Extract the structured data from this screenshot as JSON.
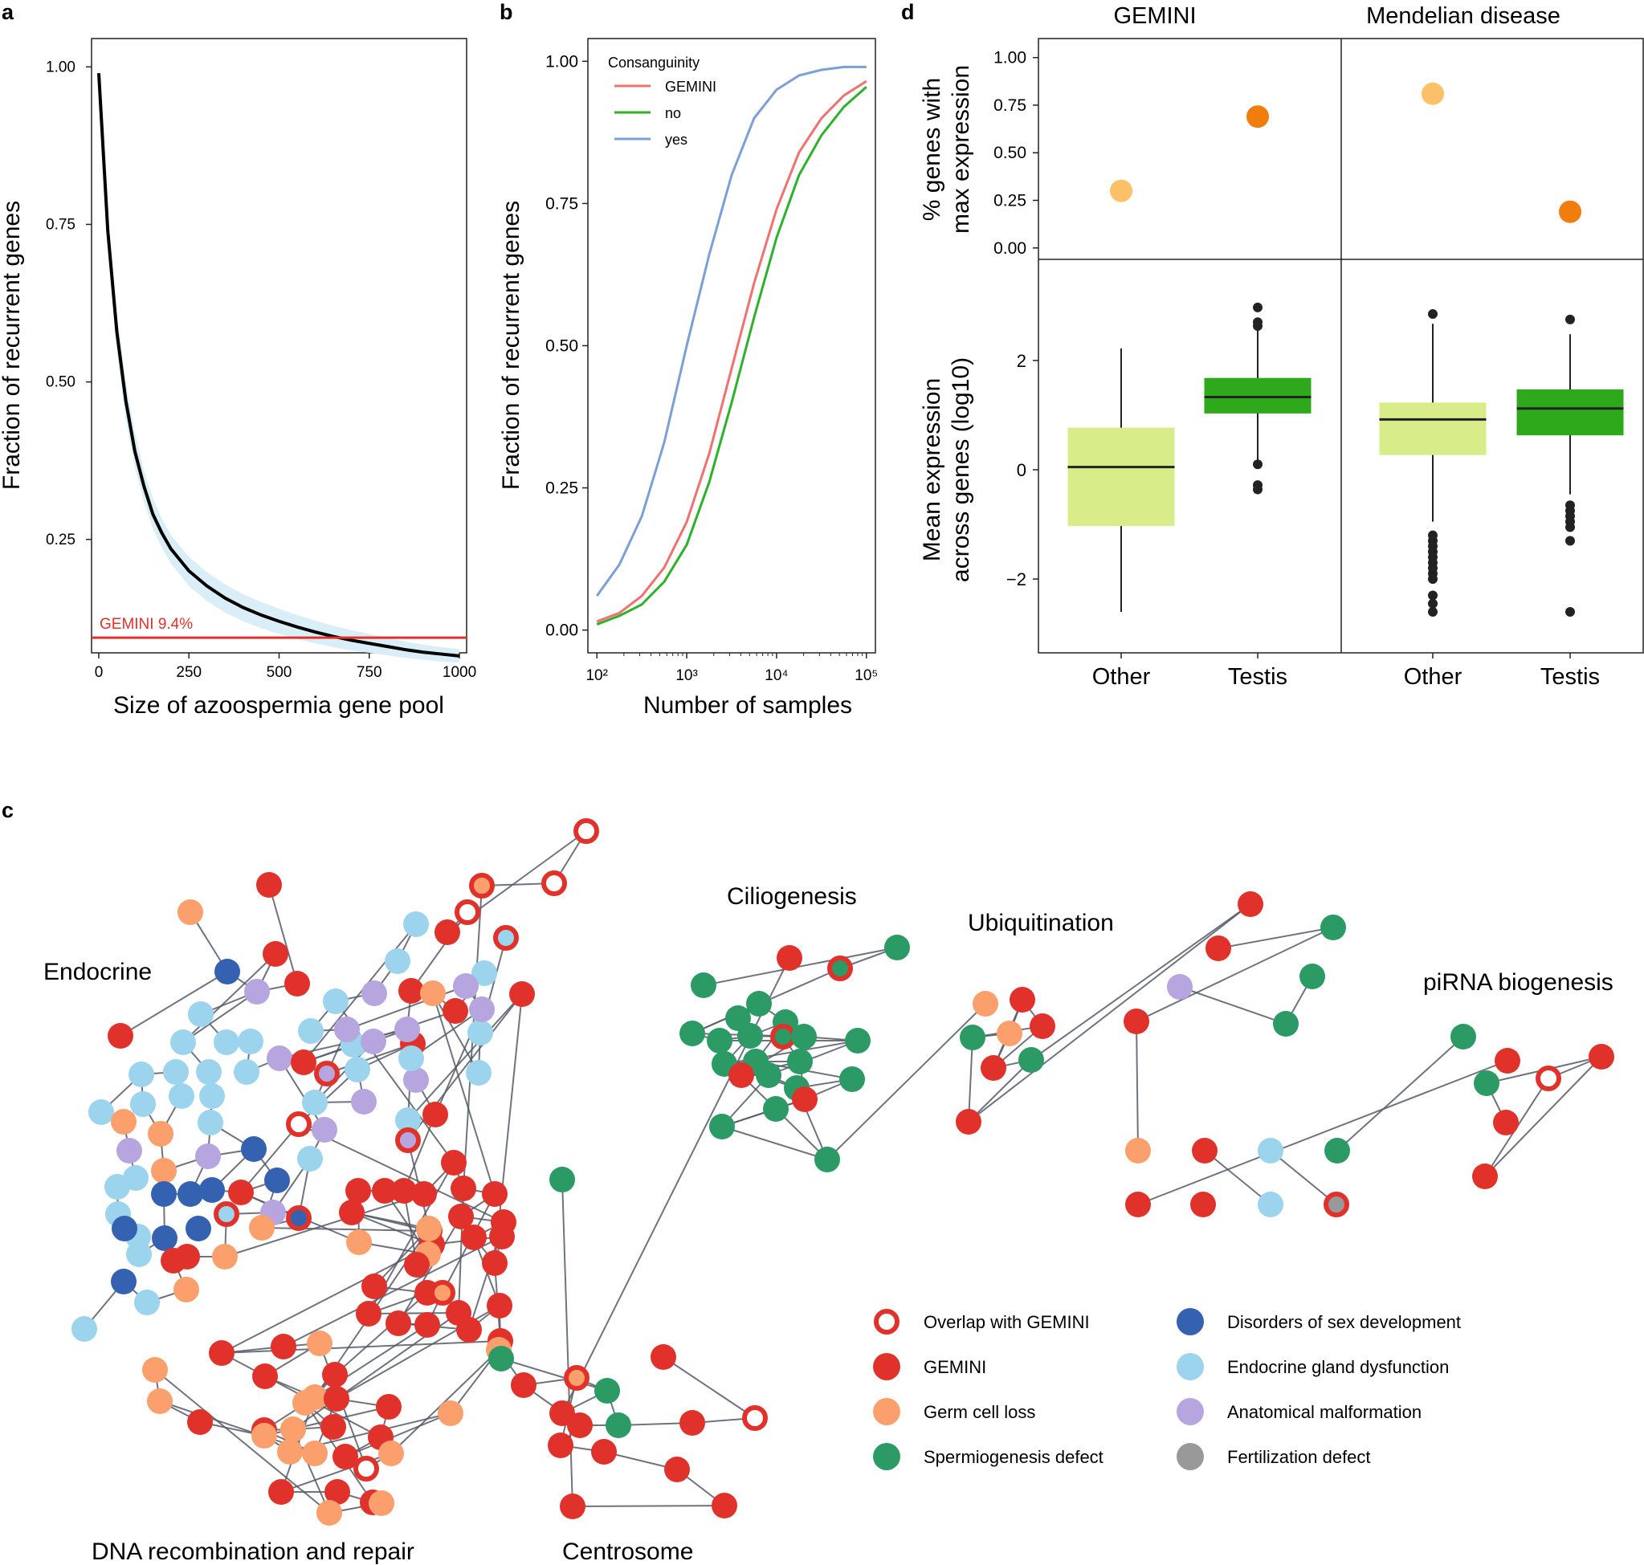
{
  "panels": {
    "a": {
      "letter": "a"
    },
    "b": {
      "letter": "b"
    },
    "c": {
      "letter": "c"
    },
    "d": {
      "letter": "d"
    }
  },
  "chart_data": [
    {
      "id": "a",
      "type": "line",
      "title": "",
      "xlabel": "Size of azoospermia gene pool",
      "ylabel": "Fraction of recurrent genes",
      "xlim": [
        -20,
        1020
      ],
      "ylim": [
        0.07,
        1.045
      ],
      "x_ticks": [
        0,
        250,
        500,
        750,
        1000
      ],
      "y_ticks": [
        0.25,
        0.5,
        0.75,
        1.0
      ],
      "y_tick_labels": [
        "0.25",
        "0.50",
        "0.75",
        "1.00"
      ],
      "series": [
        {
          "name": "fraction",
          "color": "#000000",
          "x": [
            0,
            25,
            50,
            75,
            100,
            125,
            150,
            175,
            200,
            250,
            300,
            350,
            400,
            450,
            500,
            550,
            600,
            650,
            700,
            750,
            800,
            850,
            900,
            950,
            1000
          ],
          "y": [
            0.99,
            0.74,
            0.58,
            0.47,
            0.39,
            0.335,
            0.29,
            0.26,
            0.235,
            0.2,
            0.176,
            0.157,
            0.142,
            0.13,
            0.12,
            0.111,
            0.103,
            0.096,
            0.09,
            0.085,
            0.08,
            0.075,
            0.071,
            0.068,
            0.065
          ],
          "band_low": [
            0.99,
            0.72,
            0.55,
            0.44,
            0.365,
            0.31,
            0.267,
            0.237,
            0.212,
            0.176,
            0.152,
            0.134,
            0.12,
            0.109,
            0.1,
            0.092,
            0.085,
            0.079,
            0.074,
            0.07,
            0.066,
            0.062,
            0.059,
            0.056,
            0.054
          ],
          "band_high": [
            0.99,
            0.76,
            0.61,
            0.5,
            0.42,
            0.36,
            0.315,
            0.283,
            0.257,
            0.222,
            0.198,
            0.179,
            0.163,
            0.151,
            0.14,
            0.13,
            0.121,
            0.113,
            0.106,
            0.1,
            0.094,
            0.088,
            0.083,
            0.079,
            0.076
          ],
          "band_color": "#daeef7"
        }
      ],
      "hline": {
        "y": 0.094,
        "label": "GEMINI 9.4%",
        "color": "#e0322a"
      }
    },
    {
      "id": "b",
      "type": "line",
      "title": "",
      "xlabel": "Number of samples",
      "ylabel": "Fraction of recurrent genes",
      "xscale": "log",
      "xlim_log10": [
        1.9,
        5.1
      ],
      "ylim": [
        -0.04,
        1.04
      ],
      "x_ticks_log10": [
        2,
        3,
        4,
        5
      ],
      "x_tick_labels": [
        "10²",
        "10³",
        "10⁴",
        "10⁵"
      ],
      "y_ticks": [
        0.0,
        0.25,
        0.5,
        0.75,
        1.0
      ],
      "y_tick_labels": [
        "0.00",
        "0.25",
        "0.50",
        "0.75",
        "1.00"
      ],
      "legend": {
        "title": "Consanguinity",
        "position": "top-left"
      },
      "series": [
        {
          "name": "GEMINI",
          "color": "#f0716e",
          "x_log10": [
            2.0,
            2.25,
            2.5,
            2.75,
            3.0,
            3.25,
            3.5,
            3.75,
            4.0,
            4.25,
            4.5,
            4.75,
            5.0
          ],
          "y": [
            0.015,
            0.03,
            0.06,
            0.11,
            0.19,
            0.31,
            0.46,
            0.61,
            0.74,
            0.84,
            0.9,
            0.94,
            0.965
          ]
        },
        {
          "name": "no",
          "color": "#2db12a",
          "x_log10": [
            2.0,
            2.25,
            2.5,
            2.75,
            3.0,
            3.25,
            3.5,
            3.75,
            4.0,
            4.25,
            4.5,
            4.75,
            5.0
          ],
          "y": [
            0.01,
            0.025,
            0.045,
            0.085,
            0.15,
            0.26,
            0.4,
            0.55,
            0.69,
            0.8,
            0.87,
            0.92,
            0.955
          ]
        },
        {
          "name": "yes",
          "color": "#7b9fd6",
          "x_log10": [
            2.0,
            2.25,
            2.5,
            2.75,
            3.0,
            3.25,
            3.5,
            3.75,
            4.0,
            4.25,
            4.5,
            4.75,
            5.0
          ],
          "y": [
            0.06,
            0.115,
            0.2,
            0.33,
            0.5,
            0.66,
            0.8,
            0.9,
            0.95,
            0.975,
            0.985,
            0.99,
            0.99
          ]
        }
      ]
    },
    {
      "id": "d_top",
      "type": "scatter",
      "ylabel": "% genes with max expression",
      "ylabel_lines": [
        "% genes with",
        "max expression"
      ],
      "facets": [
        "GEMINI",
        "Mendelian disease"
      ],
      "categories": [
        "Other",
        "Testis"
      ],
      "ylim": [
        -0.06,
        1.1
      ],
      "y_ticks": [
        0.0,
        0.25,
        0.5,
        0.75,
        1.0
      ],
      "y_tick_labels": [
        "0.00",
        "0.25",
        "0.50",
        "0.75",
        "1.00"
      ],
      "points": [
        {
          "facet": "GEMINI",
          "category": "Other",
          "value": 0.3,
          "color": "#fbc169"
        },
        {
          "facet": "GEMINI",
          "category": "Testis",
          "value": 0.69,
          "color": "#f07d0c"
        },
        {
          "facet": "Mendelian disease",
          "category": "Other",
          "value": 0.81,
          "color": "#fbc169"
        },
        {
          "facet": "Mendelian disease",
          "category": "Testis",
          "value": 0.19,
          "color": "#f07d0c"
        }
      ]
    },
    {
      "id": "d_bottom",
      "type": "box",
      "ylabel": "Mean expression across genes (log10)",
      "ylabel_lines": [
        "Mean expression",
        "across genes (log10)"
      ],
      "facets": [
        "GEMINI",
        "Mendelian disease"
      ],
      "categories": [
        "Other",
        "Testis"
      ],
      "ylim": [
        -3.35,
        3.85
      ],
      "y_ticks": [
        -2,
        0,
        2
      ],
      "y_tick_labels": [
        "−2",
        "0",
        "2"
      ],
      "boxes": [
        {
          "facet": "GEMINI",
          "category": "Other",
          "q1": -1.03,
          "median": 0.05,
          "q3": 0.77,
          "whisker_low": -2.6,
          "whisker_high": 2.22,
          "outliers": [],
          "color": "#d8ec8a"
        },
        {
          "facet": "GEMINI",
          "category": "Testis",
          "q1": 1.03,
          "median": 1.33,
          "q3": 1.68,
          "whisker_low": 0.12,
          "whisker_high": 2.62,
          "outliers": [
            2.97,
            2.7,
            2.63,
            0.1,
            -0.28,
            -0.36
          ],
          "color": "#2ea91c"
        },
        {
          "facet": "Mendelian disease",
          "category": "Other",
          "q1": 0.27,
          "median": 0.92,
          "q3": 1.23,
          "whisker_low": -0.95,
          "whisker_high": 2.67,
          "outliers": [
            2.85,
            -1.2,
            -1.3,
            -1.4,
            -1.5,
            -1.6,
            -1.7,
            -1.8,
            -1.9,
            -2.0,
            -2.3,
            -2.45,
            -2.6
          ],
          "color": "#d8ec8a"
        },
        {
          "facet": "Mendelian disease",
          "category": "Testis",
          "q1": 0.63,
          "median": 1.12,
          "q3": 1.47,
          "whisker_low": -0.45,
          "whisker_high": 2.48,
          "outliers": [
            2.75,
            -0.65,
            -0.75,
            -0.85,
            -0.95,
            -1.05,
            -1.3,
            -2.6
          ],
          "color": "#2ea91c"
        }
      ]
    }
  ],
  "network": {
    "module_labels": [
      "Endocrine",
      "Ciliogenesis",
      "Ubiquitination",
      "piRNA biogenesis",
      "DNA recombination and repair",
      "Centrosome"
    ],
    "legend": [
      {
        "label": "Overlap with GEMINI",
        "color": "#e0322a",
        "hollow": true
      },
      {
        "label": "GEMINI",
        "color": "#e0322a"
      },
      {
        "label": "Germ cell loss",
        "color": "#fba06c"
      },
      {
        "label": "Spermiogenesis defect",
        "color": "#2c9a64"
      },
      {
        "label": "Disorders of sex development",
        "color": "#3462b0"
      },
      {
        "label": "Endocrine gland dysfunction",
        "color": "#9cd4ee"
      },
      {
        "label": "Anatomical malformation",
        "color": "#b6a5df"
      },
      {
        "label": "Fertilization defect",
        "color": "#999999"
      }
    ]
  }
}
